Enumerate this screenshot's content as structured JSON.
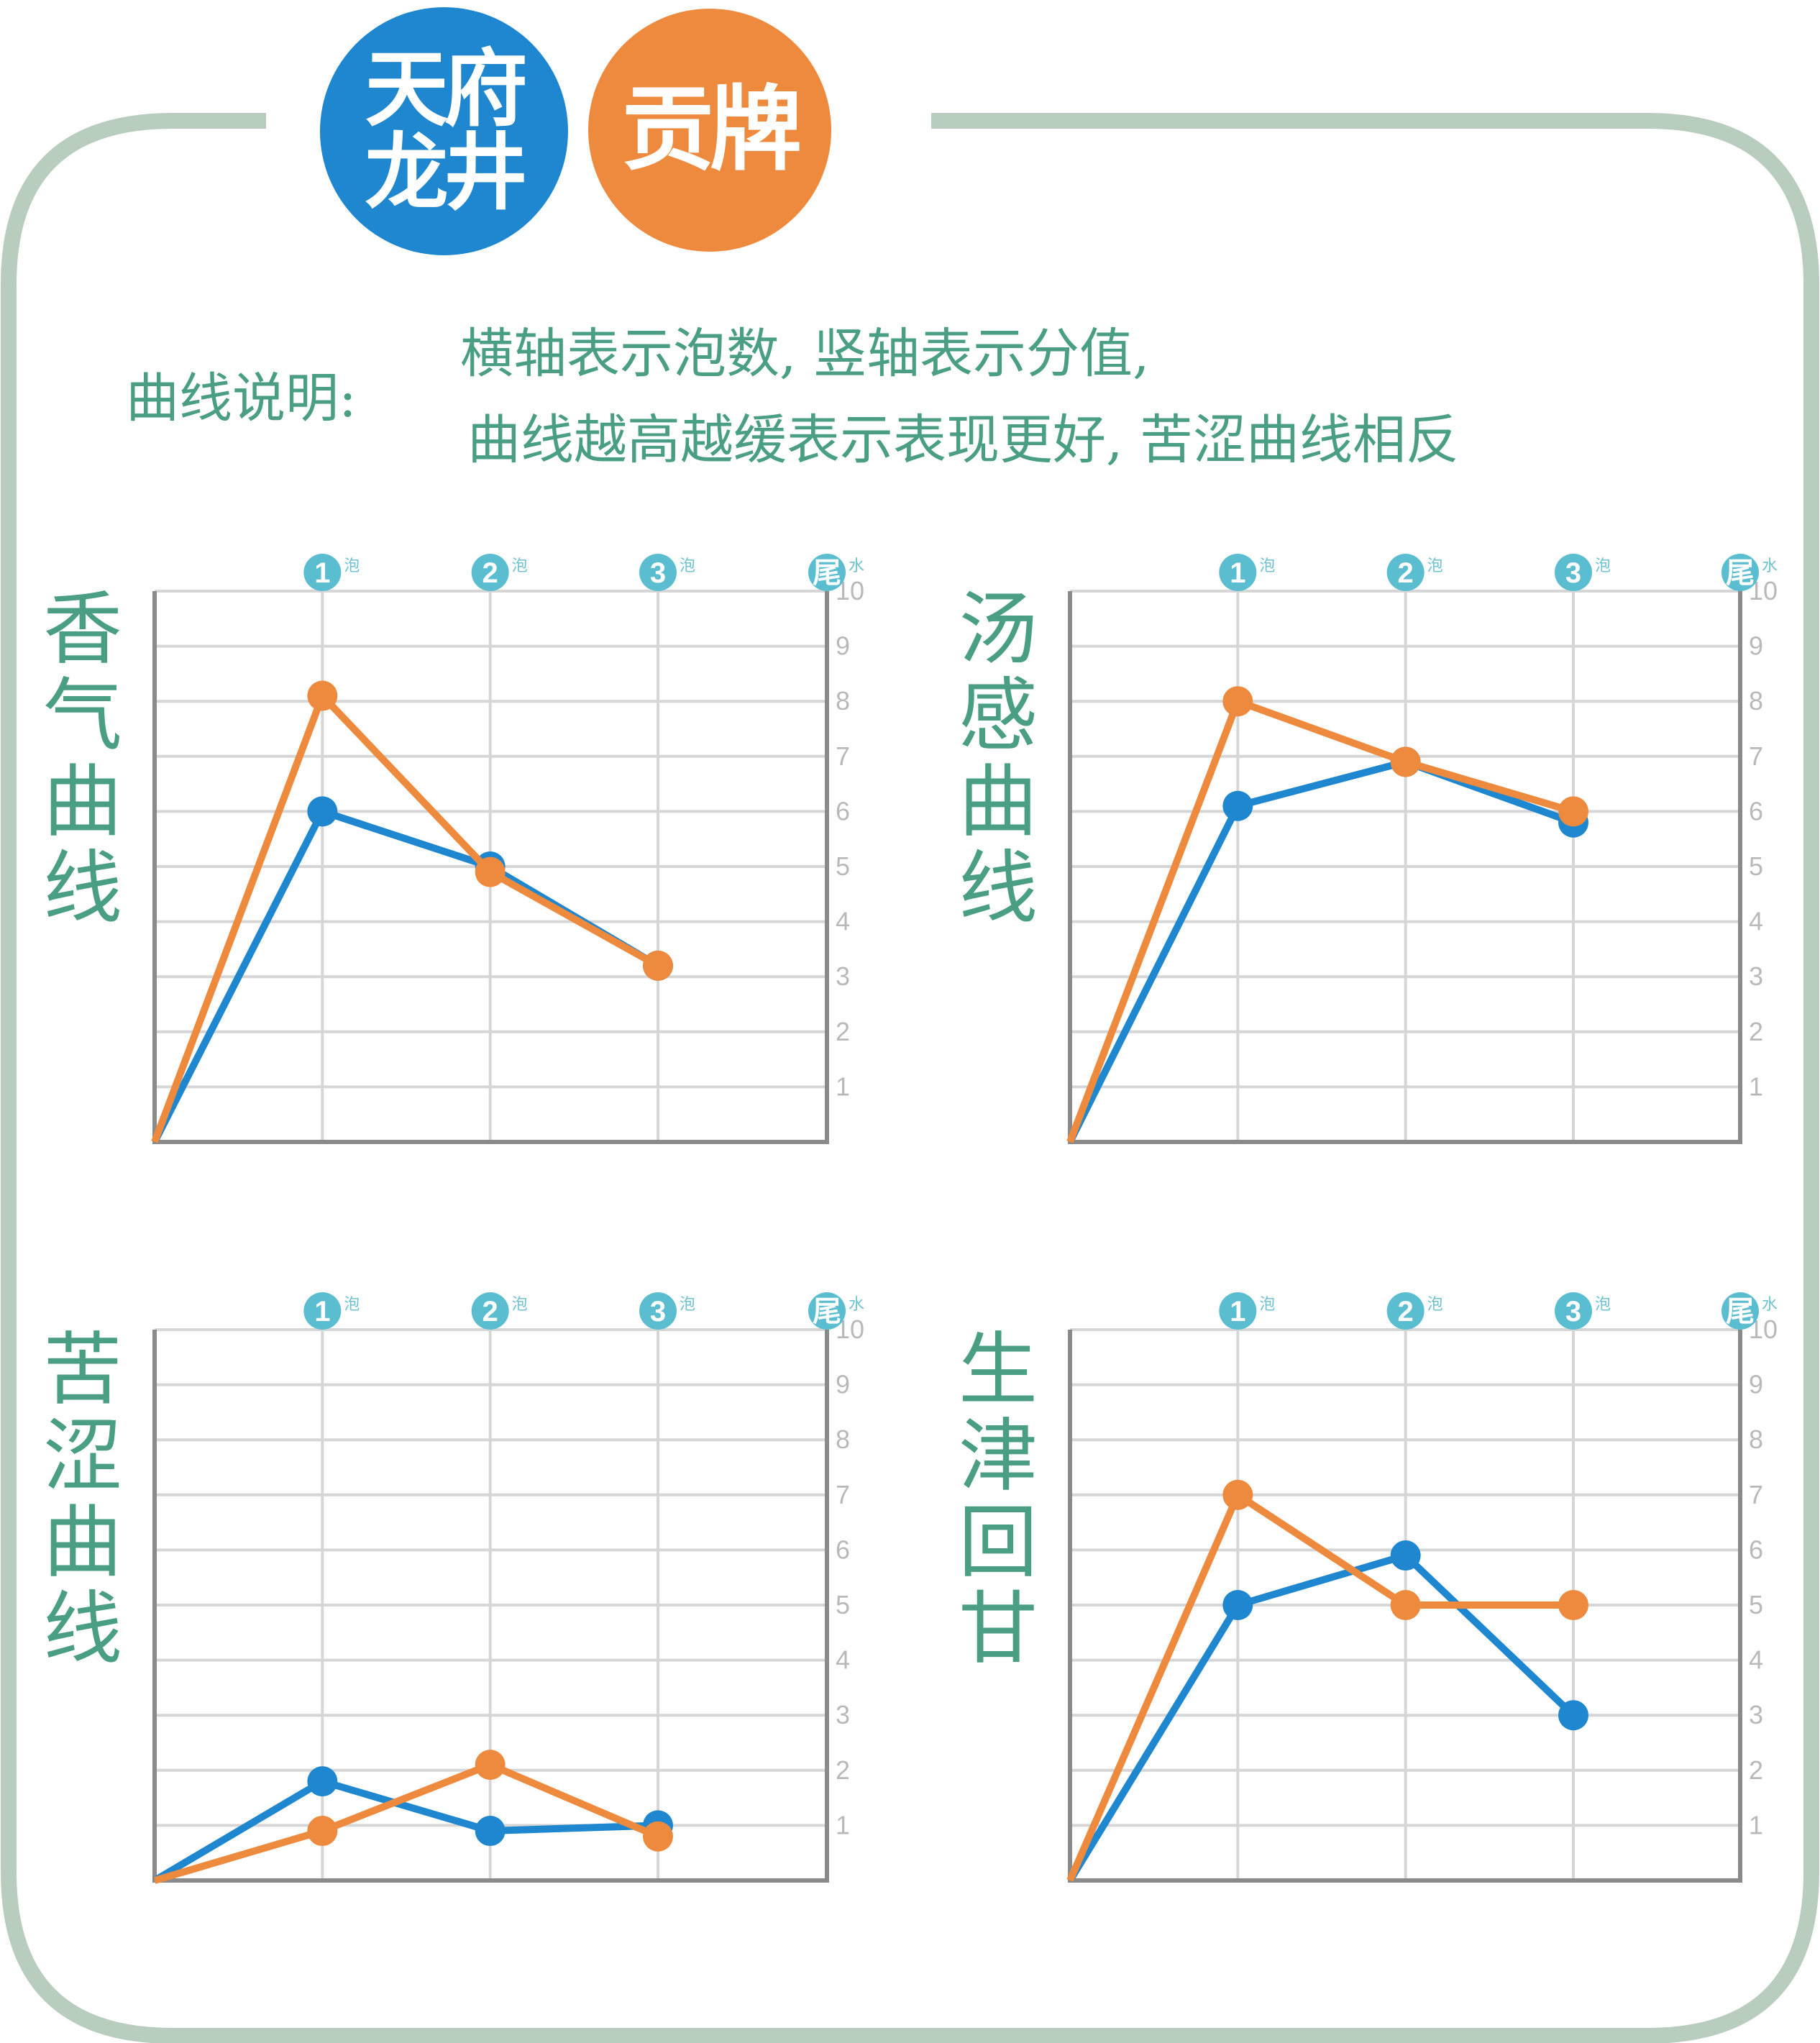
{
  "logo": {
    "blue_line1": "天府",
    "blue_line2": "龙井",
    "orange_text": "贡牌"
  },
  "legend": {
    "label": "曲线说明:",
    "line1": "横轴表示泡数, 竖轴表示分值,",
    "line2": "曲线越高越缓表示表现更好, 苦涩曲线相反"
  },
  "colors": {
    "series_blue": "#1e87cf",
    "series_orange": "#ee8a3e",
    "frame": "#b9cdbf",
    "title": "#4a9e84",
    "marker": "#5bbdd0",
    "grid": "#d6d6d6",
    "axis": "#8a8a8a"
  },
  "x_markers": [
    {
      "num": "1",
      "suffix": "泡"
    },
    {
      "num": "2",
      "suffix": "泡"
    },
    {
      "num": "3",
      "suffix": "泡"
    },
    {
      "num": "尾",
      "suffix": "水"
    }
  ],
  "y_ticks": [
    "1",
    "2",
    "3",
    "4",
    "5",
    "6",
    "7",
    "8",
    "9",
    "10"
  ],
  "chart_data": [
    {
      "type": "line",
      "title": "香气曲线",
      "x": [
        0,
        1,
        2,
        3
      ],
      "ylim": [
        0,
        10
      ],
      "grid": true,
      "series": [
        {
          "color": "blue",
          "values": [
            0,
            6.0,
            5.0,
            3.2
          ]
        },
        {
          "color": "orange",
          "values": [
            0,
            8.1,
            4.9,
            3.2
          ]
        }
      ]
    },
    {
      "type": "line",
      "title": "汤感曲线",
      "x": [
        0,
        1,
        2,
        3
      ],
      "ylim": [
        0,
        10
      ],
      "grid": true,
      "series": [
        {
          "color": "blue",
          "values": [
            0,
            6.1,
            6.9,
            5.8
          ]
        },
        {
          "color": "orange",
          "values": [
            0,
            8.0,
            6.9,
            6.0
          ]
        }
      ]
    },
    {
      "type": "line",
      "title": "苦涩曲线",
      "x": [
        0,
        1,
        2,
        3
      ],
      "ylim": [
        0,
        10
      ],
      "grid": true,
      "series": [
        {
          "color": "blue",
          "values": [
            0,
            1.8,
            0.9,
            1.0
          ]
        },
        {
          "color": "orange",
          "values": [
            0,
            0.9,
            2.1,
            0.8
          ]
        }
      ]
    },
    {
      "type": "line",
      "title": "生津回甘",
      "x": [
        0,
        1,
        2,
        3
      ],
      "ylim": [
        0,
        10
      ],
      "grid": true,
      "series": [
        {
          "color": "blue",
          "values": [
            0,
            5.0,
            5.9,
            3.0
          ]
        },
        {
          "color": "orange",
          "values": [
            0,
            7.0,
            5.0,
            5.0
          ]
        }
      ]
    }
  ]
}
